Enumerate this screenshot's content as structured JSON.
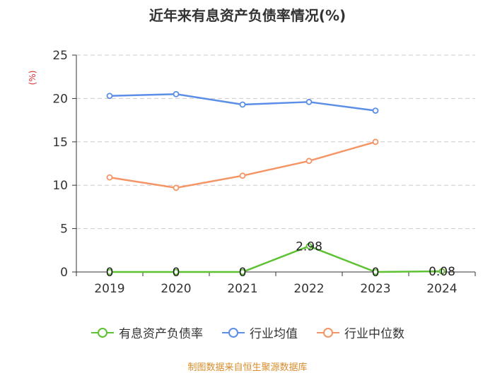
{
  "chart_data": {
    "type": "line",
    "title": "近年来有息资产负债率情况(%)",
    "ylabel": "(%)",
    "xlabel": "",
    "categories": [
      "2019",
      "2020",
      "2021",
      "2022",
      "2023",
      "2024"
    ],
    "ylim": [
      0,
      25
    ],
    "yticks": [
      0,
      5,
      10,
      15,
      20,
      25
    ],
    "grid": true,
    "legend_position": "bottom",
    "series": [
      {
        "name": "有息资产负债率",
        "color": "#5dc232",
        "values": [
          0,
          0,
          0,
          2.98,
          0,
          0.08
        ],
        "labels": [
          "0",
          "0",
          "0",
          "2.98",
          "0",
          "0.08"
        ]
      },
      {
        "name": "行业均值",
        "color": "#5b8ee6",
        "values": [
          20.3,
          20.5,
          19.3,
          19.6,
          18.6,
          null
        ]
      },
      {
        "name": "行业中位数",
        "color": "#f59566",
        "values": [
          10.9,
          9.7,
          11.1,
          12.8,
          15.0,
          null
        ]
      }
    ]
  },
  "footer": {
    "source": "制图数据来自恒生聚源数据库"
  }
}
